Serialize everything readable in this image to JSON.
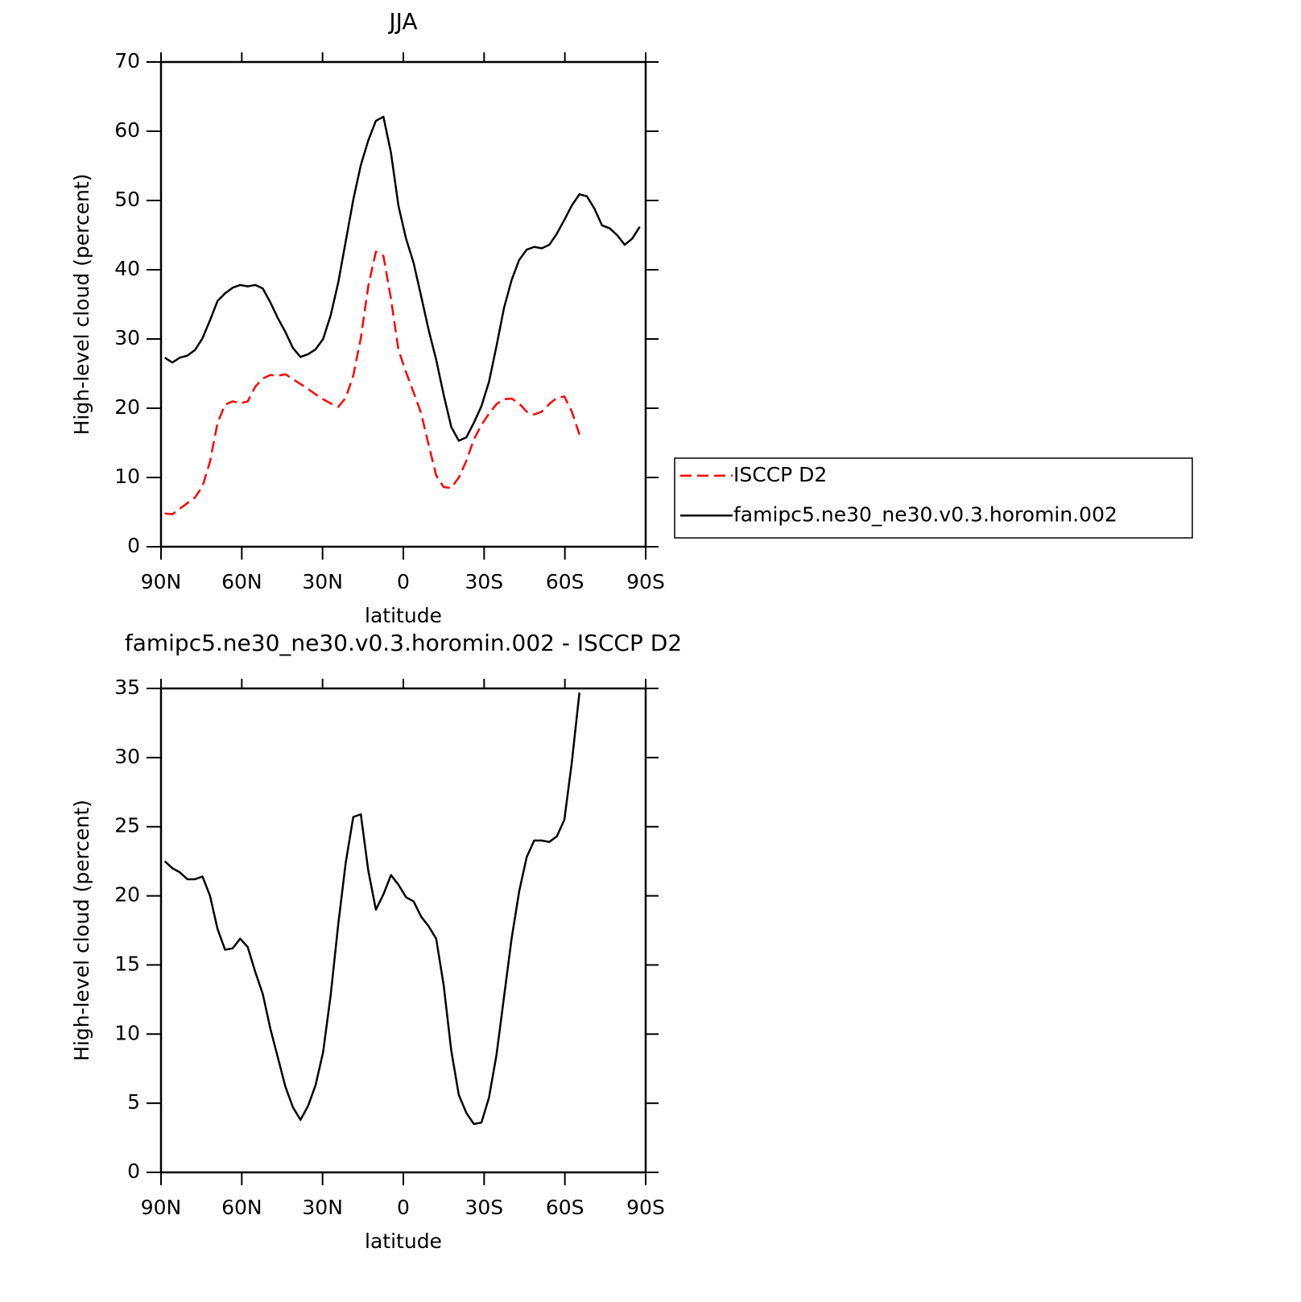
{
  "chart_data": [
    {
      "type": "line",
      "title": "JJA",
      "x_label": "latitude",
      "y_label": "High-level cloud (percent)",
      "x": [
        88.6,
        85.8,
        83.0,
        80.2,
        77.4,
        74.6,
        71.8,
        69.0,
        66.2,
        63.4,
        60.6,
        57.8,
        55.0,
        52.2,
        49.4,
        46.6,
        43.8,
        41.0,
        38.2,
        35.4,
        32.6,
        29.8,
        27.0,
        24.2,
        21.4,
        18.6,
        15.8,
        13.0,
        10.2,
        7.4,
        4.6,
        1.8,
        -1.0,
        -3.8,
        -6.6,
        -9.4,
        -12.2,
        -15.0,
        -17.8,
        -20.6,
        -23.4,
        -26.2,
        -29.0,
        -31.8,
        -34.6,
        -37.4,
        -40.2,
        -43.0,
        -45.8,
        -48.6,
        -51.4,
        -54.2,
        -57.0,
        -59.8,
        -62.6,
        -65.4,
        -68.2,
        -71.0,
        -73.8,
        -76.6,
        -79.4,
        -82.2,
        -85.0,
        -87.8
      ],
      "series": [
        {
          "name": "ISCCP D2",
          "color": "#ff0000",
          "line_style": "dashed",
          "values": [
            4.8,
            4.7,
            5.5,
            6.3,
            7.1,
            8.7,
            12.3,
            17.9,
            20.5,
            21.0,
            20.7,
            21.0,
            23.1,
            24.3,
            24.8,
            24.7,
            24.9,
            24.2,
            23.5,
            22.8,
            22.0,
            21.3,
            20.7,
            20.2,
            21.5,
            24.7,
            30.1,
            37.7,
            42.6,
            42.0,
            35.8,
            28.4,
            25.2,
            22.3,
            19.3,
            14.7,
            10.3,
            8.6,
            8.5,
            10.0,
            12.4,
            15.5,
            17.6,
            19.2,
            20.6,
            21.3,
            21.4,
            20.7,
            19.5,
            19.1,
            19.5,
            20.6,
            21.5,
            21.7,
            19.5,
            16.2,
            null,
            null,
            null,
            null,
            null,
            null,
            null,
            null
          ]
        },
        {
          "name": "famipc5.ne30_ne30.v0.3.horomin.002",
          "color": "#000000",
          "line_style": "solid",
          "values": [
            27.3,
            26.6,
            27.3,
            27.6,
            28.4,
            30.1,
            32.7,
            35.5,
            36.6,
            37.4,
            37.8,
            37.6,
            37.8,
            37.3,
            35.3,
            33.0,
            31.0,
            28.7,
            27.4,
            27.8,
            28.5,
            30.0,
            33.4,
            38.1,
            44.1,
            50.1,
            55.1,
            58.7,
            61.5,
            62.1,
            56.9,
            49.2,
            44.5,
            41.0,
            36.2,
            31.3,
            27.0,
            21.9,
            17.3,
            15.3,
            15.8,
            17.9,
            20.3,
            23.8,
            29.0,
            34.5,
            38.5,
            41.4,
            42.9,
            43.3,
            43.1,
            43.6,
            45.2,
            47.2,
            49.3,
            50.9,
            50.6,
            48.8,
            46.4,
            46.0,
            45.0,
            43.6,
            44.5,
            46.2
          ]
        }
      ],
      "xlim": [
        90,
        -90
      ],
      "xticks": [
        {
          "value": 90,
          "label": "90N"
        },
        {
          "value": 60,
          "label": "60N"
        },
        {
          "value": 30,
          "label": "30N"
        },
        0,
        {
          "value": -30,
          "label": "30S"
        },
        {
          "value": -60,
          "label": "60S"
        },
        {
          "value": -90,
          "label": "90S"
        }
      ],
      "ylim": [
        0,
        70
      ],
      "yticks": [
        0,
        10,
        20,
        30,
        40,
        50,
        60,
        70
      ],
      "legend": "right"
    },
    {
      "type": "line",
      "title": "famipc5.ne30_ne30.v0.3.horomin.002 - ISCCP D2",
      "x_label": "latitude",
      "y_label": "High-level cloud (percent)",
      "x": [
        88.6,
        85.8,
        83.0,
        80.2,
        77.4,
        74.6,
        71.8,
        69.0,
        66.2,
        63.4,
        60.6,
        57.8,
        55.0,
        52.2,
        49.4,
        46.6,
        43.8,
        41.0,
        38.2,
        35.4,
        32.6,
        29.8,
        27.0,
        24.2,
        21.4,
        18.6,
        15.8,
        13.0,
        10.2,
        7.4,
        4.6,
        1.8,
        -1.0,
        -3.8,
        -6.6,
        -9.4,
        -12.2,
        -15.0,
        -17.8,
        -20.6,
        -23.4,
        -26.2,
        -29.0,
        -31.8,
        -34.6,
        -37.4,
        -40.2,
        -43.0,
        -45.8,
        -48.6,
        -51.4,
        -54.2,
        -57.0,
        -59.8,
        -62.6,
        -65.4,
        -68.2,
        -71.0,
        -73.8,
        -76.6,
        -79.4,
        -82.2,
        -85.0,
        -87.8
      ],
      "series": [
        {
          "color": "#000000",
          "line_style": "solid",
          "values": [
            22.5,
            22.0,
            21.7,
            21.2,
            21.2,
            21.4,
            20.0,
            17.6,
            16.1,
            16.2,
            16.9,
            16.3,
            14.5,
            12.9,
            10.4,
            8.3,
            6.2,
            4.7,
            3.8,
            4.8,
            6.3,
            8.7,
            12.8,
            17.9,
            22.4,
            25.7,
            25.9,
            21.8,
            19.0,
            20.1,
            21.5,
            20.8,
            19.9,
            19.6,
            18.5,
            17.8,
            16.9,
            13.5,
            8.8,
            5.6,
            4.3,
            3.5,
            3.6,
            5.4,
            8.5,
            12.7,
            16.9,
            20.3,
            22.8,
            24.0,
            24.0,
            23.9,
            24.3,
            25.5,
            29.7,
            34.7,
            null,
            null,
            null,
            null,
            null,
            null,
            null,
            null
          ]
        }
      ],
      "xlim": [
        90,
        -90
      ],
      "xticks": [
        {
          "value": 90,
          "label": "90N"
        },
        {
          "value": 60,
          "label": "60N"
        },
        {
          "value": 30,
          "label": "30N"
        },
        0,
        {
          "value": -30,
          "label": "30S"
        },
        {
          "value": -60,
          "label": "60S"
        },
        {
          "value": -90,
          "label": "90S"
        }
      ],
      "ylim": [
        0,
        35
      ],
      "yticks": [
        0,
        5,
        10,
        15,
        20,
        25,
        30,
        35
      ]
    }
  ]
}
